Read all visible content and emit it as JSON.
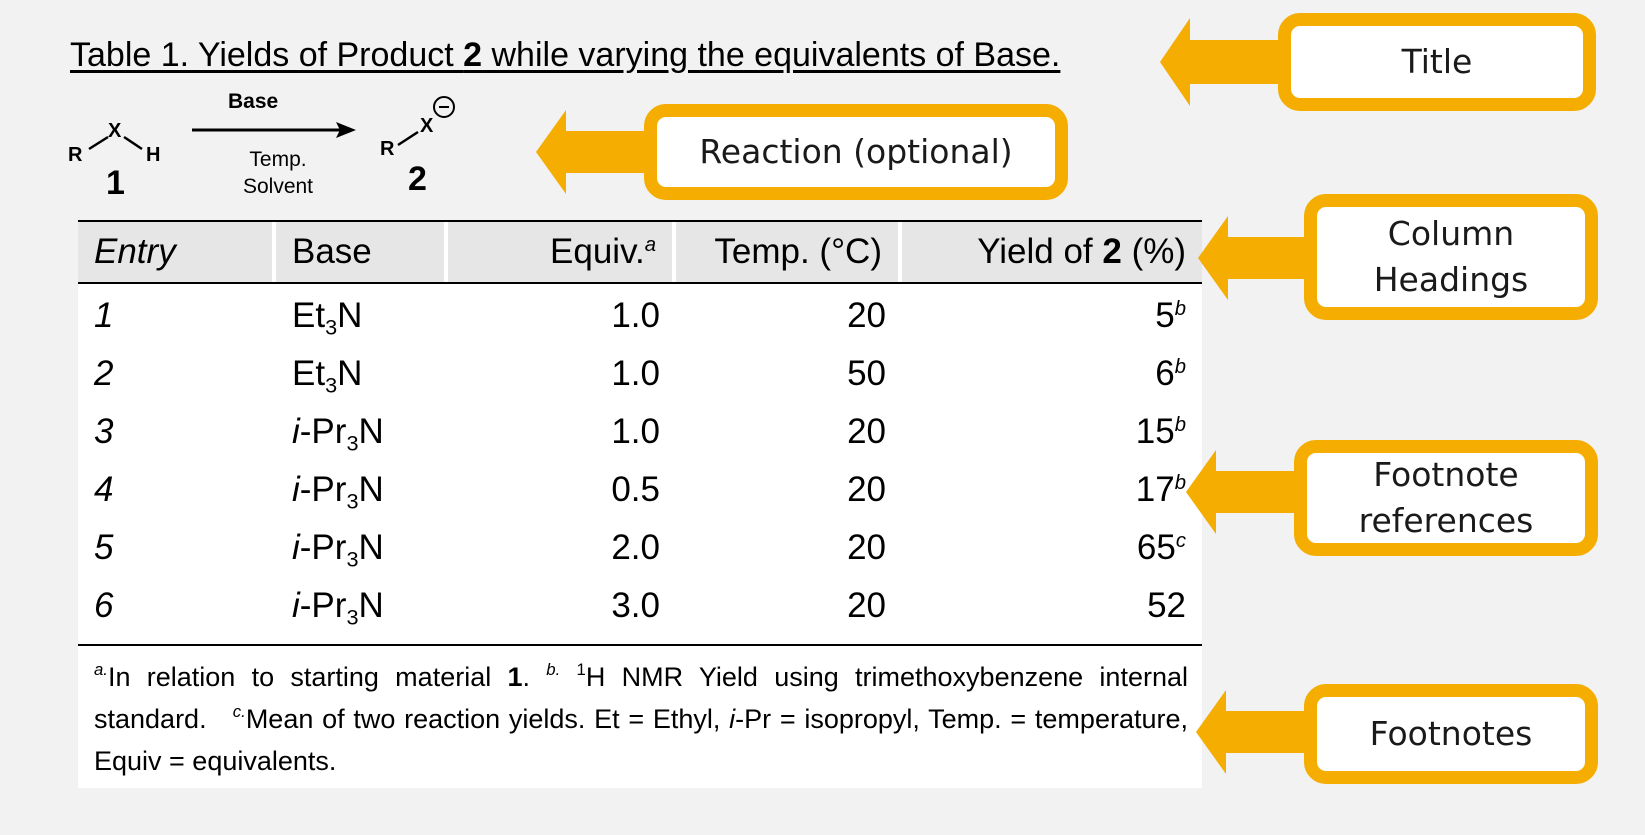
{
  "title": {
    "prefix": "Table 1. Yields of Product ",
    "bold": "2",
    "suffix": " while varying the equivalents of Base."
  },
  "reaction": {
    "reactant_r": "R",
    "reactant_x": "X",
    "reactant_h": "H",
    "reactant_number": "1",
    "condition_top": "Base",
    "condition_bottom_1": "Temp.",
    "condition_bottom_2": "Solvent",
    "product_r": "R",
    "product_x": "X",
    "product_number": "2"
  },
  "table": {
    "headers": {
      "entry": "Entry",
      "base": "Base",
      "equiv": "Equiv.",
      "equiv_note": "a",
      "temp": "Temp. (°C)",
      "yield_prefix": "Yield of ",
      "yield_bold": "2",
      "yield_suffix": " (%)"
    },
    "rows": [
      {
        "entry": "1",
        "base_pre": "",
        "base_main": "Et",
        "base_sub": "3",
        "base_post": "N",
        "equiv": "1.0",
        "temp": "20",
        "yield": "5",
        "note": "b"
      },
      {
        "entry": "2",
        "base_pre": "",
        "base_main": "Et",
        "base_sub": "3",
        "base_post": "N",
        "equiv": "1.0",
        "temp": "50",
        "yield": "6",
        "note": "b"
      },
      {
        "entry": "3",
        "base_pre": "i",
        "base_main": "-Pr",
        "base_sub": "3",
        "base_post": "N",
        "equiv": "1.0",
        "temp": "20",
        "yield": "15",
        "note": "b"
      },
      {
        "entry": "4",
        "base_pre": "i",
        "base_main": "-Pr",
        "base_sub": "3",
        "base_post": "N",
        "equiv": "0.5",
        "temp": "20",
        "yield": "17",
        "note": "b"
      },
      {
        "entry": "5",
        "base_pre": "i",
        "base_main": "-Pr",
        "base_sub": "3",
        "base_post": "N",
        "equiv": "2.0",
        "temp": "20",
        "yield": "65",
        "note": "c"
      },
      {
        "entry": "6",
        "base_pre": "i",
        "base_main": "-Pr",
        "base_sub": "3",
        "base_post": "N",
        "equiv": "3.0",
        "temp": "20",
        "yield": "52",
        "note": ""
      }
    ]
  },
  "footnotes": {
    "a_mark": "a.",
    "a_text": "In relation to starting material ",
    "a_bold": "1",
    "a_end": ". ",
    "b_mark": "b.",
    "b_sup1": "1",
    "b_text": "H NMR Yield using trimethoxybenzene internal standard. ",
    "c_mark": "c.",
    "c_text": "Mean of two reaction yields. Et = Ethyl, ",
    "c_ital": "i",
    "c_text2": "-Pr = isopropyl, Temp. = temperature, Equiv = equivalents."
  },
  "callouts": {
    "title": "Title",
    "reaction": "Reaction (optional)",
    "headings_line1": "Column",
    "headings_line2": "Headings",
    "refs_line1": "Footnote",
    "refs_line2": "references",
    "footnotes": "Footnotes"
  },
  "colors": {
    "callout_accent": "#f4ad00",
    "header_band": "#e6e6e6",
    "page_background": "#f2f2f2"
  }
}
